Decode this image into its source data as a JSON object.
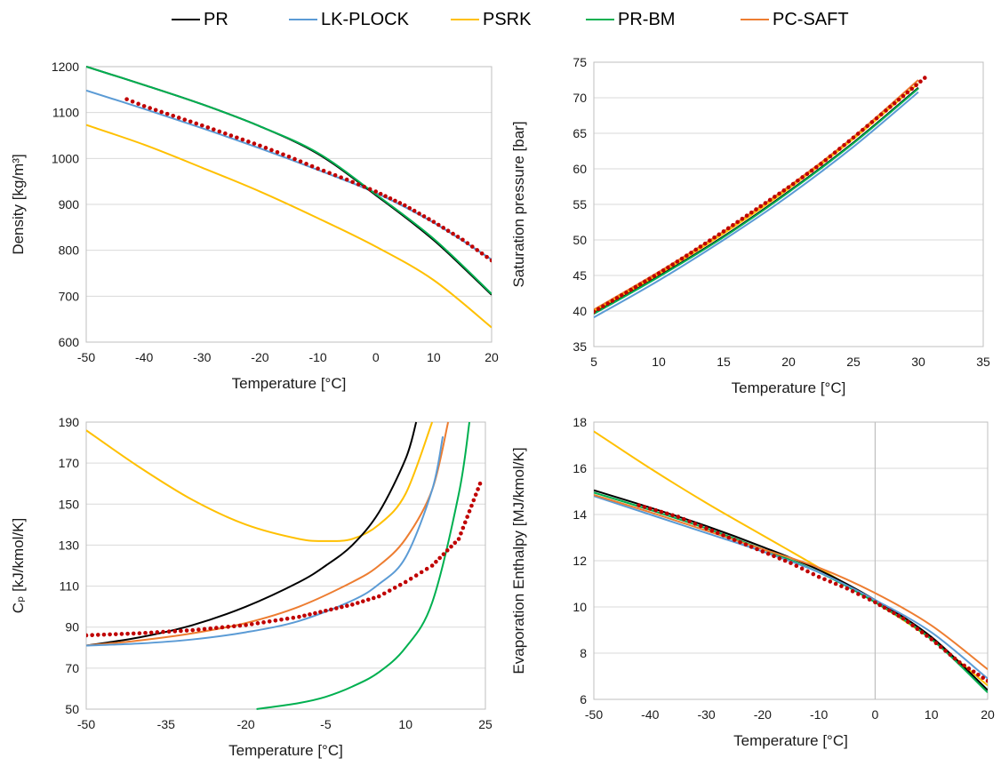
{
  "legend": [
    {
      "name": "PR",
      "color": "#000000"
    },
    {
      "name": "LK-PLOCK",
      "color": "#5B9BD5"
    },
    {
      "name": "PSRK",
      "color": "#FFC000"
    },
    {
      "name": "PR-BM",
      "color": "#00B050"
    },
    {
      "name": "PC-SAFT",
      "color": "#ED7D31"
    }
  ],
  "experimental_marker_color": "#C00000",
  "chart_data": [
    {
      "type": "line",
      "xlabel": "Temperature [°C]",
      "ylabel": "Density [kg/m³]",
      "xlim": [
        -50,
        20
      ],
      "ylim": [
        600,
        1200
      ],
      "xticks": [
        "-50",
        "-40",
        "-30",
        "-20",
        "-10",
        "0",
        "10",
        "20"
      ],
      "yticks": [
        "600",
        "700",
        "800",
        "900",
        "1000",
        "1100",
        "1200"
      ],
      "series": [
        {
          "name": "LK-PLOCK",
          "color": "#5B9BD5",
          "x": [
            -50,
            -40,
            -30,
            -20,
            -10,
            0,
            10,
            20
          ],
          "y": [
            1148,
            1108,
            1066,
            1022,
            975,
            925,
            860,
            780
          ]
        },
        {
          "name": "PR",
          "color": "#000000",
          "x": [
            -50,
            -40,
            -30,
            -20,
            -10,
            0,
            10,
            20
          ],
          "y": [
            1200,
            1160,
            1118,
            1070,
            1010,
            920,
            822,
            703
          ]
        },
        {
          "name": "PSRK",
          "color": "#FFC000",
          "x": [
            -50,
            -40,
            -30,
            -20,
            -10,
            0,
            10,
            20
          ],
          "y": [
            1073,
            1030,
            980,
            928,
            870,
            808,
            735,
            632
          ]
        },
        {
          "name": "PR-BM",
          "color": "#00B050",
          "x": [
            -50,
            -40,
            -30,
            -20,
            -10,
            0,
            10,
            20
          ],
          "y": [
            1200,
            1160,
            1118,
            1070,
            1012,
            922,
            825,
            705
          ]
        },
        {
          "name": "",
          "style": "markers",
          "color": "#C00000",
          "x": [
            -43,
            -40,
            -35,
            -30,
            -25,
            -20,
            -15,
            -10,
            -5,
            0,
            5,
            10,
            15,
            20
          ],
          "y": [
            1129,
            1114,
            1093,
            1072,
            1050,
            1028,
            1004,
            978,
            954,
            928,
            898,
            862,
            823,
            778
          ]
        }
      ]
    },
    {
      "type": "line",
      "xlabel": "Temperature [°C]",
      "ylabel": "Saturation pressure [bar]",
      "xlim": [
        5,
        35
      ],
      "ylim": [
        35,
        75
      ],
      "xticks": [
        "5",
        "10",
        "15",
        "20",
        "25",
        "30",
        "35"
      ],
      "yticks": [
        "35",
        "40",
        "45",
        "50",
        "55",
        "60",
        "65",
        "70",
        "75"
      ],
      "series": [
        {
          "name": "PC-SAFT",
          "color": "#ED7D31",
          "x": [
            5,
            10,
            15,
            20,
            25,
            30
          ],
          "y": [
            40.2,
            45.5,
            51.2,
            57.5,
            64.5,
            72.5
          ]
        },
        {
          "name": "PSRK",
          "color": "#FFC000",
          "x": [
            5,
            10,
            15,
            20,
            25,
            30
          ],
          "y": [
            40.0,
            45.2,
            50.9,
            57.2,
            64.2,
            72.0
          ]
        },
        {
          "name": "PR",
          "color": "#000000",
          "x": [
            5,
            10,
            15,
            20,
            25,
            30
          ],
          "y": [
            39.7,
            44.9,
            50.5,
            56.8,
            63.7,
            71.4
          ]
        },
        {
          "name": "PR-BM",
          "color": "#00B050",
          "x": [
            5,
            10,
            15,
            20,
            25,
            30
          ],
          "y": [
            39.6,
            44.8,
            50.4,
            56.7,
            63.6,
            71.3
          ]
        },
        {
          "name": "LK-PLOCK",
          "color": "#5B9BD5",
          "x": [
            5,
            10,
            15,
            20,
            25,
            30
          ],
          "y": [
            39.1,
            44.3,
            50.0,
            56.2,
            63.1,
            70.8
          ]
        },
        {
          "name": "",
          "style": "markers",
          "color": "#C00000",
          "x": [
            5,
            7.5,
            10,
            12.5,
            15,
            17.5,
            20,
            22.5,
            25,
            27.5,
            30.5
          ],
          "y": [
            39.9,
            42.6,
            45.3,
            48.2,
            51.2,
            54.3,
            57.4,
            60.7,
            64.4,
            68.2,
            72.8
          ]
        }
      ]
    },
    {
      "type": "line",
      "xlabel": "Temperature [°C]",
      "ylabel": "Cₚ [kJ/kmol/K]",
      "xlim": [
        -50,
        25
      ],
      "ylim": [
        50,
        190
      ],
      "xticks": [
        "-50",
        "-35",
        "-20",
        "-5",
        "10",
        "25"
      ],
      "yticks": [
        "50",
        "70",
        "90",
        "110",
        "130",
        "150",
        "170",
        "190"
      ],
      "series": [
        {
          "name": "PSRK",
          "color": "#FFC000",
          "x": [
            -50,
            -40,
            -30,
            -20,
            -10,
            -5,
            0,
            5,
            10,
            15
          ],
          "y": [
            186,
            168,
            152,
            140,
            133,
            132,
            133,
            140,
            155,
            190
          ]
        },
        {
          "name": "PR",
          "color": "#000000",
          "x": [
            -50,
            -40,
            -30,
            -20,
            -10,
            -5,
            0,
            5,
            10,
            12
          ],
          "y": [
            81,
            85,
            91,
            100,
            112,
            120,
            130,
            146,
            172,
            190
          ]
        },
        {
          "name": "PC-SAFT",
          "color": "#ED7D31",
          "x": [
            -50,
            -40,
            -30,
            -20,
            -10,
            0,
            5,
            10,
            15,
            18
          ],
          "y": [
            81,
            83.5,
            87,
            92,
            100,
            112,
            120,
            133,
            157,
            190
          ]
        },
        {
          "name": "LK-PLOCK",
          "color": "#5B9BD5",
          "x": [
            -50,
            -40,
            -30,
            -20,
            -10,
            0,
            5,
            10,
            15,
            17
          ],
          "y": [
            81,
            82,
            84,
            87.5,
            93,
            103,
            111,
            124,
            157,
            183
          ]
        },
        {
          "name": "PR-BM",
          "color": "#00B050",
          "x": [
            -18,
            -10,
            -5,
            0,
            5,
            10,
            15,
            20,
            22
          ],
          "y": [
            50,
            53,
            56,
            61,
            68,
            80,
            102,
            155,
            190
          ]
        },
        {
          "name": "",
          "style": "markers",
          "color": "#C00000",
          "x": [
            -50,
            -40,
            -30,
            -20,
            -10,
            -5,
            0,
            5,
            10,
            15,
            20,
            24
          ],
          "y": [
            86,
            87,
            88.5,
            91,
            95,
            98,
            101,
            105,
            112,
            120,
            133,
            160
          ]
        }
      ]
    },
    {
      "type": "line",
      "xlabel": "Temperature [°C]",
      "ylabel": "Evaporation Enthalpy [MJ/kmol/K]",
      "xlim": [
        -50,
        20
      ],
      "ylim": [
        6,
        18
      ],
      "xticks": [
        "-50",
        "-40",
        "-30",
        "-20",
        "-10",
        "0",
        "10",
        "20"
      ],
      "yticks": [
        "6",
        "8",
        "10",
        "12",
        "14",
        "16",
        "18"
      ],
      "series": [
        {
          "name": "PSRK",
          "color": "#FFC000",
          "x": [
            -50,
            -40,
            -30,
            -20,
            -10,
            0,
            10,
            20
          ],
          "y": [
            17.6,
            16.0,
            14.5,
            13.1,
            11.7,
            10.2,
            8.6,
            6.6
          ]
        },
        {
          "name": "PR",
          "color": "#000000",
          "x": [
            -50,
            -40,
            -30,
            -20,
            -10,
            0,
            10,
            20
          ],
          "y": [
            15.05,
            14.3,
            13.5,
            12.6,
            11.6,
            10.3,
            8.7,
            6.4
          ]
        },
        {
          "name": "PR-BM",
          "color": "#00B050",
          "x": [
            -50,
            -40,
            -30,
            -20,
            -10,
            0,
            10,
            20
          ],
          "y": [
            14.95,
            14.2,
            13.4,
            12.5,
            11.5,
            10.2,
            8.6,
            6.3
          ]
        },
        {
          "name": "LK-PLOCK",
          "color": "#5B9BD5",
          "x": [
            -50,
            -40,
            -30,
            -20,
            -10,
            0,
            10,
            20
          ],
          "y": [
            14.8,
            14.0,
            13.2,
            12.4,
            11.5,
            10.3,
            8.9,
            6.9
          ]
        },
        {
          "name": "PC-SAFT",
          "color": "#ED7D31",
          "x": [
            -50,
            -40,
            -30,
            -20,
            -10,
            0,
            10,
            20
          ],
          "y": [
            14.85,
            14.1,
            13.3,
            12.5,
            11.7,
            10.6,
            9.2,
            7.3
          ]
        },
        {
          "name": "",
          "style": "markers",
          "color": "#C00000",
          "x": [
            -42,
            -35,
            -30,
            -25,
            -20,
            -15,
            -10,
            -5,
            0,
            5,
            10,
            15,
            20
          ],
          "y": [
            14.4,
            13.9,
            13.4,
            12.9,
            12.4,
            11.9,
            11.3,
            10.8,
            10.2,
            9.5,
            8.6,
            7.6,
            6.8
          ]
        }
      ]
    }
  ]
}
